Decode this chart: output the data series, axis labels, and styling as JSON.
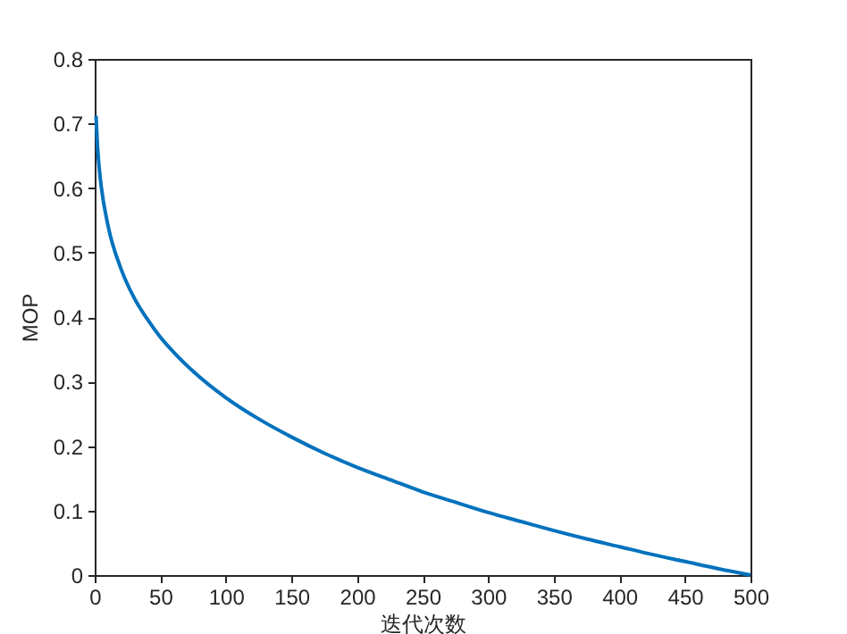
{
  "chart_data": {
    "type": "line",
    "xlabel": "迭代次数",
    "ylabel": "MOP",
    "x": [
      1,
      2,
      3,
      5,
      10,
      20,
      30,
      40,
      50,
      60,
      75,
      100,
      125,
      150,
      175,
      200,
      225,
      250,
      275,
      300,
      325,
      350,
      375,
      400,
      425,
      450,
      475,
      500
    ],
    "series": [
      {
        "color": "#0072bd",
        "values": [
          0.712,
          0.669,
          0.641,
          0.602,
          0.543,
          0.475,
          0.43,
          0.397,
          0.369,
          0.346,
          0.316,
          0.275,
          0.242,
          0.214,
          0.189,
          0.167,
          0.148,
          0.129,
          0.113,
          0.097,
          0.083,
          0.069,
          0.056,
          0.044,
          0.032,
          0.021,
          0.01,
          0
        ]
      }
    ],
    "xlim": [
      0,
      500
    ],
    "xticks": [
      0,
      50,
      100,
      150,
      200,
      250,
      300,
      350,
      400,
      450,
      500
    ],
    "ylim": [
      0,
      0.8
    ],
    "yticks": [
      0,
      0.1,
      0.2,
      0.3,
      0.4,
      0.5,
      0.6,
      0.7,
      0.8
    ],
    "grid": false,
    "line_style": "solid",
    "marker": "none"
  }
}
